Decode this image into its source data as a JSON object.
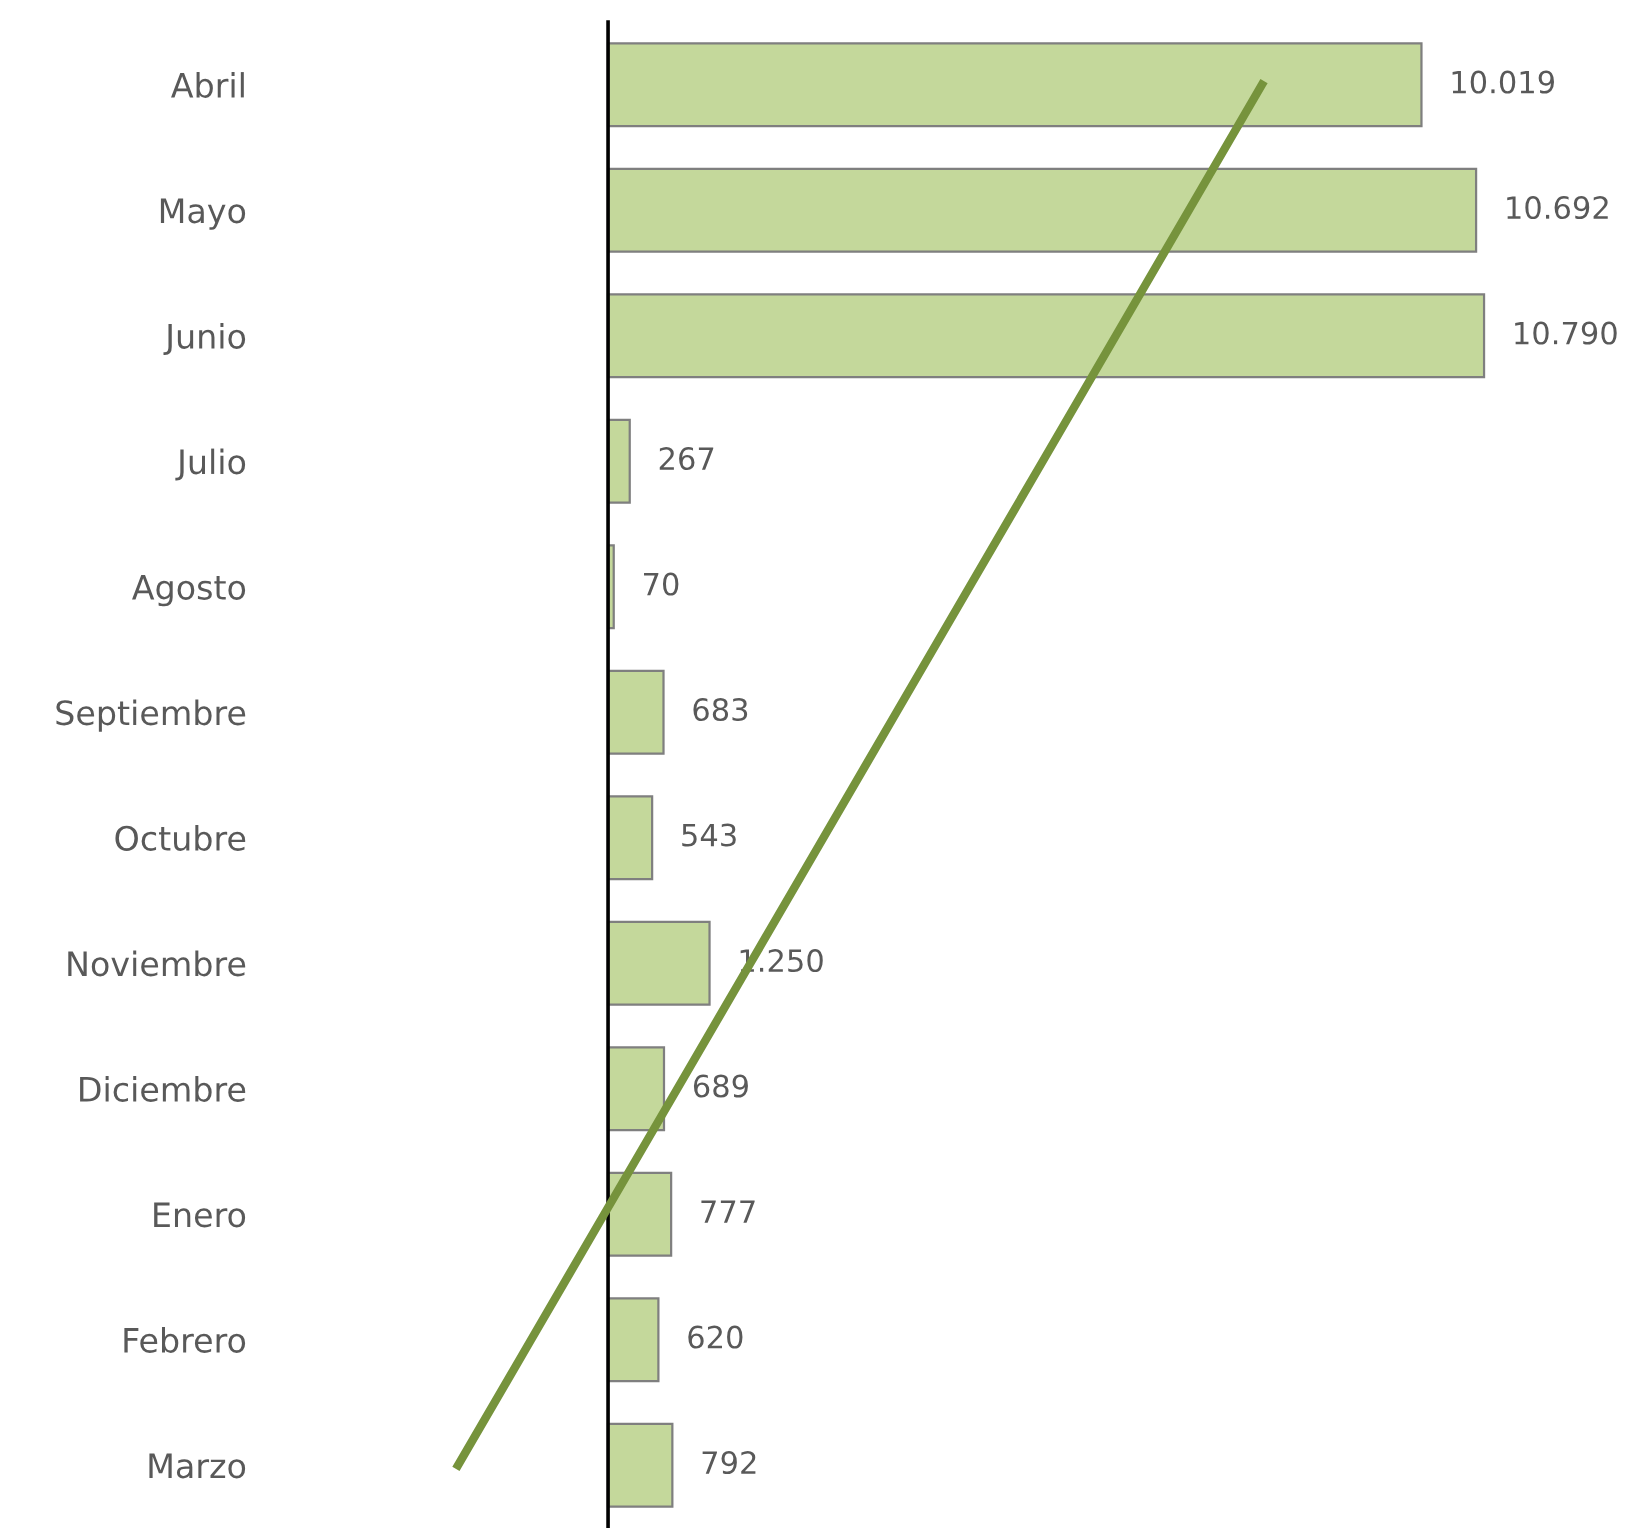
{
  "chart_data": {
    "type": "bar",
    "orientation": "horizontal",
    "categories": [
      "Abril",
      "Mayo",
      "Junio",
      "Julio",
      "Agosto",
      "Septiembre",
      "Octubre",
      "Noviembre",
      "Diciembre",
      "Enero",
      "Febrero",
      "Marzo"
    ],
    "series": [
      {
        "color": "#c4d89b",
        "values": [
          10019,
          10692,
          10790,
          267,
          70,
          683,
          543,
          1250,
          689,
          777,
          620,
          792
        ],
        "value_labels": [
          "10.019",
          "10.692",
          "10.790",
          "267",
          "70",
          "683",
          "543",
          "1.250",
          "689",
          "777",
          "620",
          "792"
        ]
      },
      {
        "type": "line",
        "color": "#76933c",
        "values": [
          8054,
          7154,
          6254,
          5354,
          4453,
          3553,
          2653,
          1753,
          853,
          -48,
          -948,
          -1848
        ]
      }
    ],
    "tick_labels": "y",
    "grid": false,
    "legend": false
  }
}
